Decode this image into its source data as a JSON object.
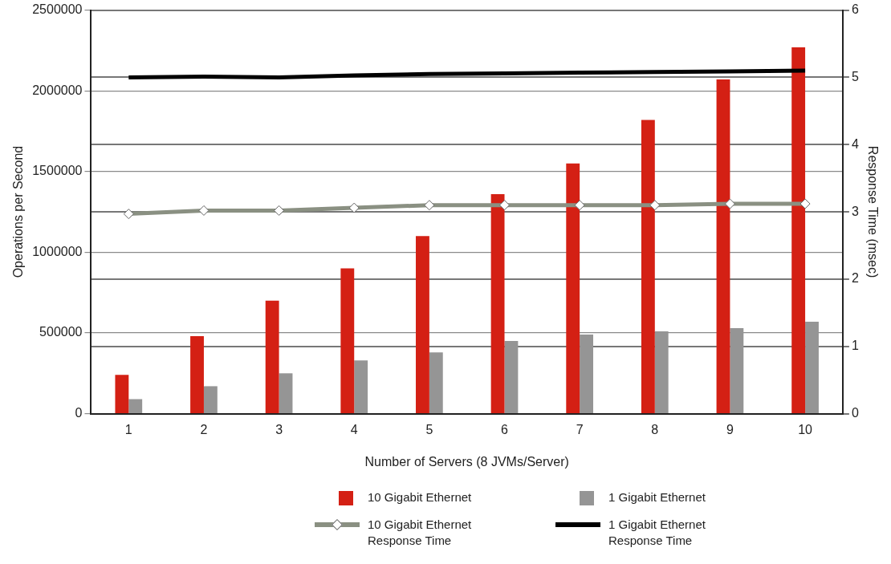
{
  "chart_data": {
    "type": "bar",
    "xlabel": "Number of Servers (8 JVMs/Server)",
    "ylabel": "Operations per Second",
    "y2label": "Response Time (msec)",
    "categories": [
      "1",
      "2",
      "3",
      "4",
      "5",
      "6",
      "7",
      "8",
      "9",
      "10"
    ],
    "series": [
      {
        "name": "10 Gigabit Ethernet",
        "color": "#d42014",
        "values": [
          240000,
          480000,
          700000,
          900000,
          1100000,
          1360000,
          1550000,
          1820000,
          2070000,
          2270000
        ]
      },
      {
        "name": "1 Gigabit Ethernet",
        "color": "#959595",
        "values": [
          90000,
          170000,
          250000,
          330000,
          380000,
          450000,
          490000,
          510000,
          530000,
          570000
        ]
      },
      {
        "name": "10 Gigabit Ethernet Response Time",
        "type": "line",
        "axis": "y2",
        "color": "#8a9082",
        "marker": "diamond",
        "values": [
          2.97,
          3.02,
          3.02,
          3.06,
          3.1,
          3.1,
          3.1,
          3.1,
          3.12,
          3.12
        ]
      },
      {
        "name": "1 Gigabit Ethernet Response Time",
        "type": "line",
        "axis": "y2",
        "color": "#000000",
        "marker": "none",
        "values": [
          5.0,
          5.01,
          5.0,
          5.03,
          5.05,
          5.06,
          5.07,
          5.08,
          5.09,
          5.1
        ]
      }
    ],
    "ylim": [
      0,
      2500000
    ],
    "yticks": [
      0,
      500000,
      1000000,
      1500000,
      2000000,
      2500000
    ],
    "y2lim": [
      0,
      6
    ],
    "y2ticks": [
      0,
      1,
      2,
      3,
      4,
      5,
      6
    ],
    "grid": true,
    "legend": "bottom"
  }
}
